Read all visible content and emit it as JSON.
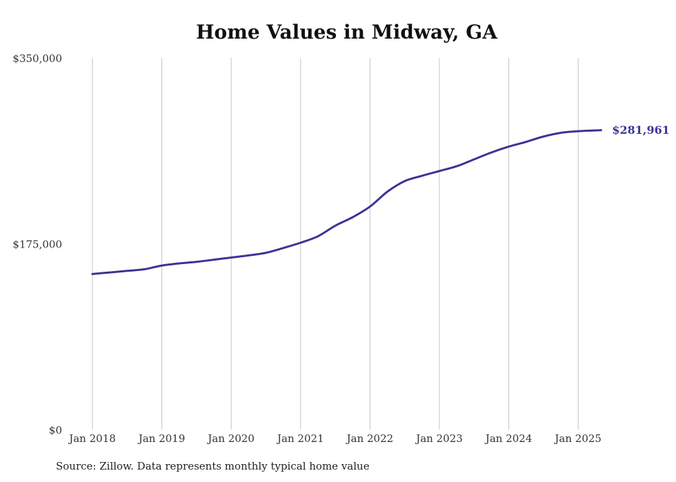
{
  "chart_data": {
    "type": "line",
    "title": "Home Values in Midway, GA",
    "xlabel": "",
    "ylabel": "",
    "ylim": [
      0,
      350000
    ],
    "y_ticks": [
      {
        "value": 0,
        "label": "$0"
      },
      {
        "value": 175000,
        "label": "$175,000"
      },
      {
        "value": 350000,
        "label": "$350,000"
      }
    ],
    "x_ticks": [
      {
        "value": 2018,
        "label": "Jan 2018"
      },
      {
        "value": 2019,
        "label": "Jan 2019"
      },
      {
        "value": 2020,
        "label": "Jan 2020"
      },
      {
        "value": 2021,
        "label": "Jan 2021"
      },
      {
        "value": 2022,
        "label": "Jan 2022"
      },
      {
        "value": 2023,
        "label": "Jan 2023"
      },
      {
        "value": 2024,
        "label": "Jan 2024"
      },
      {
        "value": 2025,
        "label": "Jan 2025"
      }
    ],
    "xlim": [
      2018,
      2025.33
    ],
    "grid": {
      "vertical": true,
      "horizontal": false
    },
    "series": [
      {
        "color": "#3a3495",
        "end_label": "$281,961",
        "points": [
          {
            "x": 2018.0,
            "y": 146500
          },
          {
            "x": 2018.25,
            "y": 148000
          },
          {
            "x": 2018.5,
            "y": 149500
          },
          {
            "x": 2018.75,
            "y": 151000
          },
          {
            "x": 2019.0,
            "y": 154500
          },
          {
            "x": 2019.25,
            "y": 156500
          },
          {
            "x": 2019.5,
            "y": 158000
          },
          {
            "x": 2019.75,
            "y": 160000
          },
          {
            "x": 2020.0,
            "y": 162000
          },
          {
            "x": 2020.25,
            "y": 164000
          },
          {
            "x": 2020.5,
            "y": 166500
          },
          {
            "x": 2020.75,
            "y": 171000
          },
          {
            "x": 2021.0,
            "y": 176000
          },
          {
            "x": 2021.25,
            "y": 182000
          },
          {
            "x": 2021.5,
            "y": 192000
          },
          {
            "x": 2021.75,
            "y": 200000
          },
          {
            "x": 2022.0,
            "y": 210000
          },
          {
            "x": 2022.25,
            "y": 224000
          },
          {
            "x": 2022.5,
            "y": 234000
          },
          {
            "x": 2022.75,
            "y": 239000
          },
          {
            "x": 2023.0,
            "y": 243500
          },
          {
            "x": 2023.25,
            "y": 248000
          },
          {
            "x": 2023.5,
            "y": 254500
          },
          {
            "x": 2023.75,
            "y": 261000
          },
          {
            "x": 2024.0,
            "y": 266500
          },
          {
            "x": 2024.25,
            "y": 271000
          },
          {
            "x": 2024.5,
            "y": 276000
          },
          {
            "x": 2024.75,
            "y": 279500
          },
          {
            "x": 2025.0,
            "y": 281000
          },
          {
            "x": 2025.33,
            "y": 281961
          }
        ]
      }
    ]
  },
  "footer": {
    "source": "Source: Zillow. Data represents monthly typical home value"
  }
}
